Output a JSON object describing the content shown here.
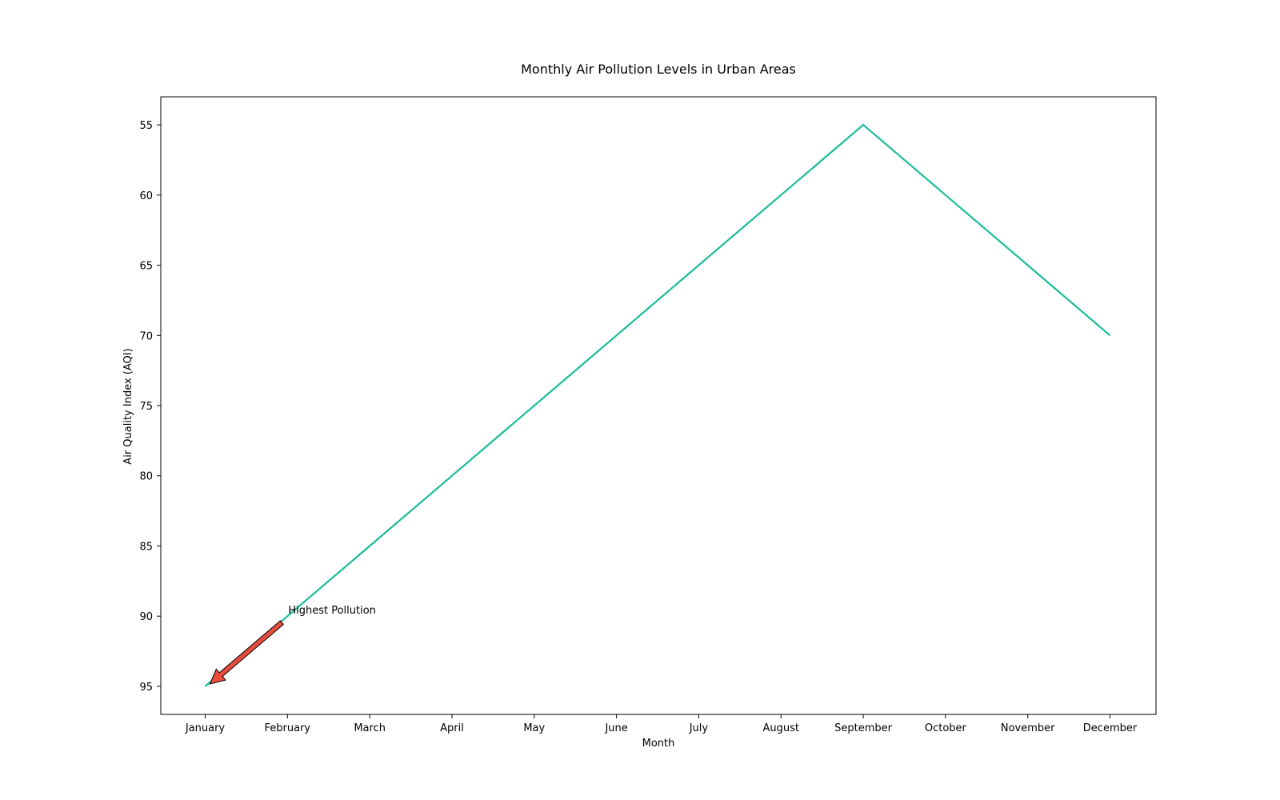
{
  "chart_data": {
    "type": "line",
    "title": "Monthly Air Pollution Levels in Urban Areas",
    "xlabel": "Month",
    "ylabel": "Air Quality Index (AQI)",
    "categories": [
      "January",
      "February",
      "March",
      "April",
      "May",
      "June",
      "July",
      "August",
      "September",
      "October",
      "November",
      "December"
    ],
    "series": [
      {
        "values": [
          95,
          90,
          85,
          80,
          75,
          70,
          65,
          60,
          55,
          60,
          65,
          70
        ]
      }
    ],
    "y_ticks": [
      "55",
      "60",
      "65",
      "70",
      "75",
      "80",
      "85",
      "90",
      "95"
    ],
    "ylim": [
      97,
      53
    ],
    "y_inverted": true,
    "grid": false,
    "line_color": "#1abc9c",
    "annotation": {
      "text": "Highest Pollution",
      "point": {
        "x": "January",
        "y": 95
      },
      "text_anchor": {
        "x": "February",
        "y": 90
      },
      "arrow_color": "#e74c3c"
    }
  }
}
